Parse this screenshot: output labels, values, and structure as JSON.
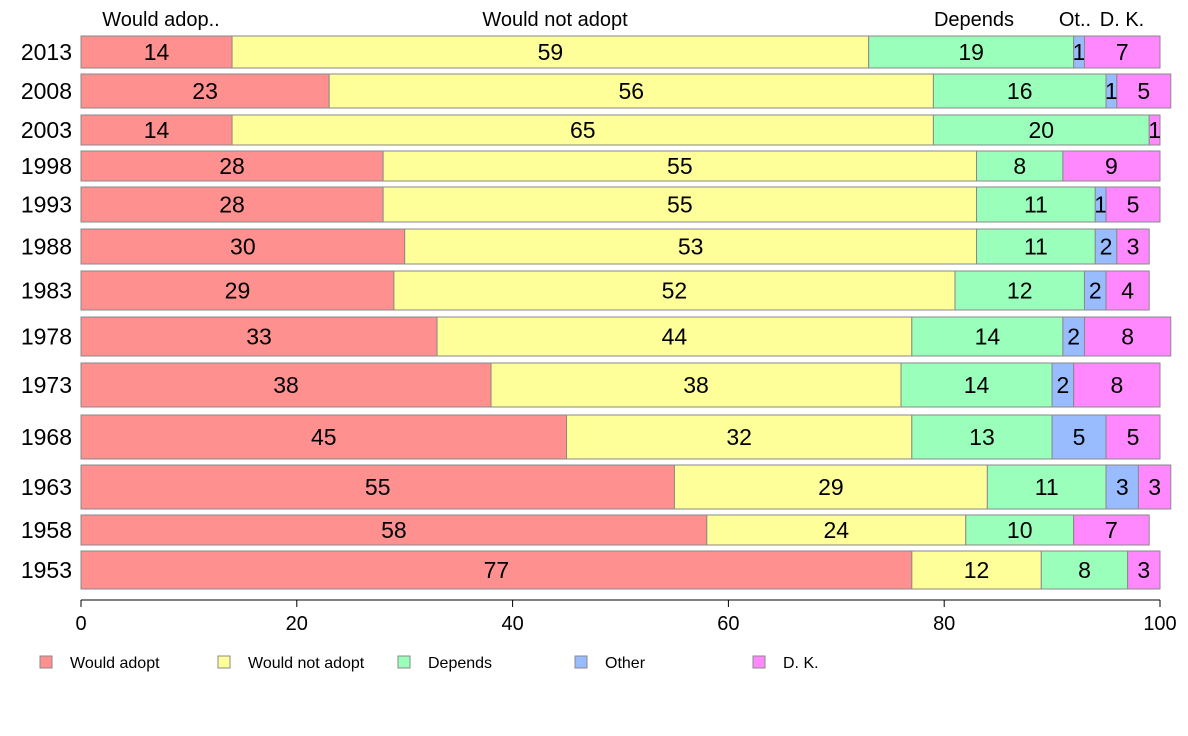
{
  "chart_data": {
    "type": "bar",
    "orientation": "horizontal",
    "stacked": true,
    "column_headers": [
      "Would adop..",
      "Would not adopt",
      "Depends",
      "Ot..",
      "D. K."
    ],
    "categories": [
      "2013",
      "2008",
      "2003",
      "1998",
      "1993",
      "1988",
      "1983",
      "1978",
      "1973",
      "1968",
      "1963",
      "1958",
      "1953"
    ],
    "series": [
      {
        "name": "Would adopt",
        "color": "#ff9090",
        "values": [
          14,
          23,
          14,
          28,
          28,
          30,
          29,
          33,
          38,
          45,
          55,
          58,
          77
        ]
      },
      {
        "name": "Would not adopt",
        "color": "#ffff99",
        "values": [
          59,
          56,
          65,
          55,
          55,
          53,
          52,
          44,
          38,
          32,
          29,
          24,
          12
        ]
      },
      {
        "name": "Depends",
        "color": "#99ffbb",
        "values": [
          19,
          16,
          20,
          8,
          11,
          11,
          12,
          14,
          14,
          13,
          11,
          10,
          8
        ]
      },
      {
        "name": "Other",
        "color": "#99bbff",
        "values": [
          1,
          1,
          0,
          0,
          1,
          2,
          2,
          2,
          2,
          5,
          3,
          0,
          0
        ]
      },
      {
        "name": "D. K.",
        "color": "#ff88ff",
        "values": [
          7,
          5,
          1,
          9,
          5,
          3,
          4,
          8,
          8,
          5,
          3,
          7,
          3
        ]
      }
    ],
    "data_labels": [
      [
        "14",
        "59",
        "19",
        "1",
        "7"
      ],
      [
        "23",
        "56",
        "16",
        "1",
        "5"
      ],
      [
        "14",
        "65",
        "20",
        "",
        "1"
      ],
      [
        "28",
        "55",
        "8",
        "",
        "9"
      ],
      [
        "28",
        "55",
        "11",
        "1",
        "5"
      ],
      [
        "30",
        "53",
        "11",
        "2",
        "3"
      ],
      [
        "29",
        "52",
        "12",
        "2",
        "4"
      ],
      [
        "33",
        "44",
        "14",
        "2",
        "8"
      ],
      [
        "38",
        "38",
        "14",
        "2",
        "8"
      ],
      [
        "45",
        "32",
        "13",
        "5",
        "5"
      ],
      [
        "55",
        "29",
        "11",
        "3",
        "3"
      ],
      [
        "58",
        "24",
        "10",
        "",
        "7"
      ],
      [
        "77",
        "12",
        "8",
        "",
        "3"
      ]
    ],
    "xlim": [
      0,
      100
    ],
    "xticks": [
      "0",
      "20",
      "40",
      "60",
      "80",
      "100"
    ],
    "legend_position": "bottom",
    "grid": false
  }
}
